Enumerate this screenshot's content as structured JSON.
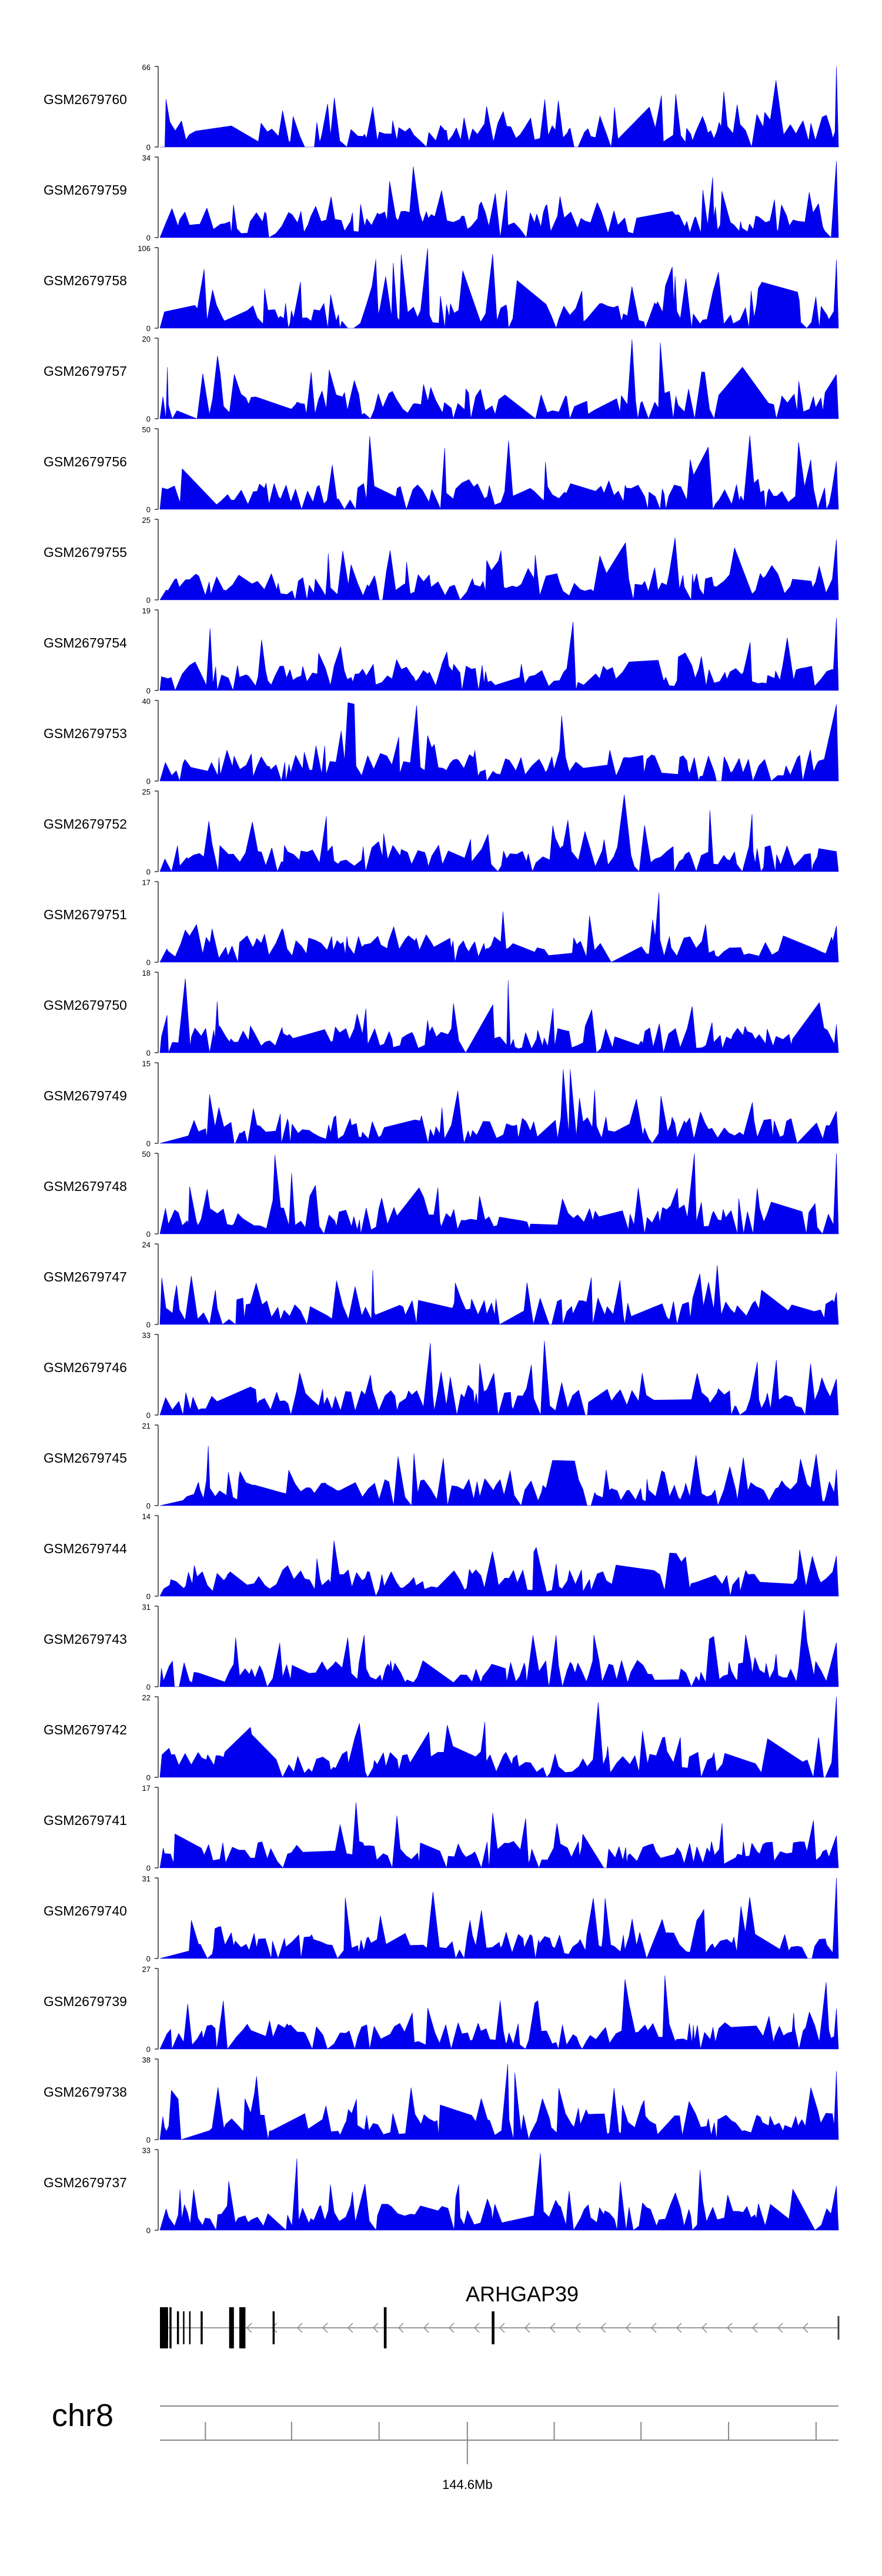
{
  "chart_data": {
    "type": "area",
    "fill_color": "#0000ee",
    "line_color": "#000000",
    "tracks": [
      {
        "name": "GSM2679760",
        "ymax": 66,
        "ymin": 0,
        "seed": 760,
        "edge_peak": 1.0
      },
      {
        "name": "GSM2679759",
        "ymax": 34,
        "ymin": 0,
        "seed": 759,
        "edge_peak": 0.95
      },
      {
        "name": "GSM2679758",
        "ymax": 106,
        "ymin": 0,
        "seed": 758,
        "edge_peak": 0.85
      },
      {
        "name": "GSM2679757",
        "ymax": 20,
        "ymin": 0,
        "seed": 757,
        "edge_peak": 0.55
      },
      {
        "name": "GSM2679756",
        "ymax": 50,
        "ymin": 0,
        "seed": 756,
        "edge_peak": 0.6
      },
      {
        "name": "GSM2679755",
        "ymax": 25,
        "ymin": 0,
        "seed": 755,
        "edge_peak": 0.75
      },
      {
        "name": "GSM2679754",
        "ymax": 19,
        "ymin": 0,
        "seed": 754,
        "edge_peak": 0.9
      },
      {
        "name": "GSM2679753",
        "ymax": 40,
        "ymin": 0,
        "seed": 753,
        "edge_peak": 0.95
      },
      {
        "name": "GSM2679752",
        "ymax": 25,
        "ymin": 0,
        "seed": 752,
        "edge_peak": 0.25
      },
      {
        "name": "GSM2679751",
        "ymax": 17,
        "ymin": 0,
        "seed": 751,
        "edge_peak": 0.45
      },
      {
        "name": "GSM2679750",
        "ymax": 18,
        "ymin": 0,
        "seed": 750,
        "edge_peak": 0.35
      },
      {
        "name": "GSM2679749",
        "ymax": 15,
        "ymin": 0,
        "seed": 749,
        "edge_peak": 0.4
      },
      {
        "name": "GSM2679748",
        "ymax": 50,
        "ymin": 0,
        "seed": 748,
        "edge_peak": 1.0
      },
      {
        "name": "GSM2679747",
        "ymax": 24,
        "ymin": 0,
        "seed": 747,
        "edge_peak": 0.4
      },
      {
        "name": "GSM2679746",
        "ymax": 33,
        "ymin": 0,
        "seed": 746,
        "edge_peak": 0.45
      },
      {
        "name": "GSM2679745",
        "ymax": 21,
        "ymin": 0,
        "seed": 745,
        "edge_peak": 0.45
      },
      {
        "name": "GSM2679744",
        "ymax": 14,
        "ymin": 0,
        "seed": 744,
        "edge_peak": 0.5
      },
      {
        "name": "GSM2679743",
        "ymax": 31,
        "ymin": 0,
        "seed": 743,
        "edge_peak": 0.55
      },
      {
        "name": "GSM2679742",
        "ymax": 22,
        "ymin": 0,
        "seed": 742,
        "edge_peak": 1.0
      },
      {
        "name": "GSM2679741",
        "ymax": 17,
        "ymin": 0,
        "seed": 741,
        "edge_peak": 0.4
      },
      {
        "name": "GSM2679740",
        "ymax": 31,
        "ymin": 0,
        "seed": 740,
        "edge_peak": 1.0
      },
      {
        "name": "GSM2679739",
        "ymax": 27,
        "ymin": 0,
        "seed": 739,
        "edge_peak": 0.5
      },
      {
        "name": "GSM2679738",
        "ymax": 38,
        "ymin": 0,
        "seed": 738,
        "edge_peak": 0.85
      },
      {
        "name": "GSM2679737",
        "ymax": 33,
        "ymin": 0,
        "seed": 737,
        "edge_peak": 0.55
      }
    ],
    "gene": {
      "name": "ARHGAP39",
      "strand": "-",
      "exons": [
        {
          "start": 0.0,
          "end": 0.012,
          "tall": true
        },
        {
          "start": 0.014,
          "end": 0.017,
          "tall": true
        },
        {
          "start": 0.025,
          "end": 0.028,
          "tall": false
        },
        {
          "start": 0.034,
          "end": 0.036,
          "tall": false
        },
        {
          "start": 0.043,
          "end": 0.045,
          "tall": false
        },
        {
          "start": 0.06,
          "end": 0.063,
          "tall": false
        },
        {
          "start": 0.102,
          "end": 0.109,
          "tall": true
        },
        {
          "start": 0.117,
          "end": 0.126,
          "tall": true
        },
        {
          "start": 0.166,
          "end": 0.169,
          "tall": false
        },
        {
          "start": 0.33,
          "end": 0.334,
          "tall": true
        },
        {
          "start": 0.489,
          "end": 0.493,
          "tall": false
        }
      ]
    },
    "chromosome": "chr8",
    "x_axis": {
      "tick_label": "144.6Mb",
      "labeled_tick": 0.453,
      "ticks": [
        0.067,
        0.194,
        0.323,
        0.453,
        0.581,
        0.709,
        0.838,
        0.967
      ]
    }
  }
}
